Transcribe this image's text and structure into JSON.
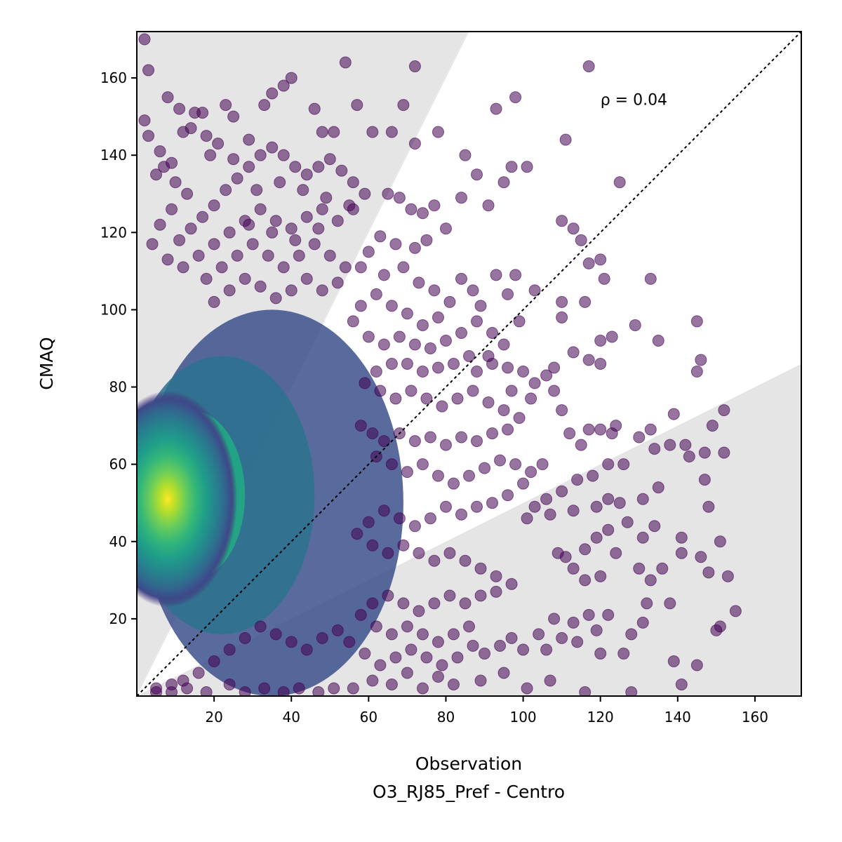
{
  "chart_data": {
    "type": "scatter",
    "title": "",
    "xlabel": "Observation",
    "xlabel_sub": "O3_RJ85_Pref - Centro",
    "ylabel": "CMAQ",
    "xlim": [
      0,
      172
    ],
    "ylim": [
      0,
      172
    ],
    "xticks": [
      20,
      40,
      60,
      80,
      100,
      120,
      140,
      160
    ],
    "yticks": [
      20,
      40,
      60,
      80,
      100,
      120,
      140,
      160
    ],
    "annotation": {
      "text": "ρ = 0.04",
      "x": 120,
      "y": 153
    },
    "reference_line": {
      "type": "1:1",
      "style": "dotted",
      "color": "#000000"
    },
    "shaded_regions": [
      {
        "name": "factor-2-upper",
        "boundary": "y = 2x",
        "color": "#e5e5e5"
      },
      {
        "name": "factor-2-lower",
        "boundary": "y = x/2",
        "color": "#e5e5e5"
      }
    ],
    "colormap": "viridis",
    "density_peak": {
      "x": 8,
      "y": 51
    },
    "points": [
      [
        2,
        170
      ],
      [
        3,
        162
      ],
      [
        2,
        149
      ],
      [
        8,
        155
      ],
      [
        11,
        152
      ],
      [
        15,
        151
      ],
      [
        17,
        151
      ],
      [
        14,
        147
      ],
      [
        12,
        146
      ],
      [
        18,
        145
      ],
      [
        23,
        153
      ],
      [
        25,
        150
      ],
      [
        29,
        144
      ],
      [
        33,
        153
      ],
      [
        35,
        156
      ],
      [
        38,
        158
      ],
      [
        40,
        160
      ],
      [
        46,
        152
      ],
      [
        48,
        146
      ],
      [
        51,
        146
      ],
      [
        54,
        164
      ],
      [
        57,
        153
      ],
      [
        61,
        146
      ],
      [
        66,
        146
      ],
      [
        69,
        153
      ],
      [
        72,
        163
      ],
      [
        72,
        143
      ],
      [
        78,
        146
      ],
      [
        93,
        152
      ],
      [
        98,
        155
      ],
      [
        111,
        144
      ],
      [
        117,
        163
      ],
      [
        85,
        140
      ],
      [
        88,
        135
      ],
      [
        97,
        137
      ],
      [
        101,
        137
      ],
      [
        95,
        133
      ],
      [
        84,
        129
      ],
      [
        91,
        127
      ],
      [
        125,
        133
      ],
      [
        110,
        123
      ],
      [
        113,
        121
      ],
      [
        115,
        118
      ],
      [
        120,
        113
      ],
      [
        117,
        112
      ],
      [
        121,
        108
      ],
      [
        133,
        108
      ],
      [
        110,
        102
      ],
      [
        116,
        102
      ],
      [
        96,
        104
      ],
      [
        103,
        105
      ],
      [
        98,
        109
      ],
      [
        93,
        109
      ],
      [
        84,
        108
      ],
      [
        87,
        105
      ],
      [
        89,
        101
      ],
      [
        99,
        97
      ],
      [
        110,
        98
      ],
      [
        120,
        92
      ],
      [
        123,
        93
      ],
      [
        129,
        96
      ],
      [
        135,
        92
      ],
      [
        145,
        97
      ],
      [
        146,
        87
      ],
      [
        145,
        84
      ],
      [
        113,
        89
      ],
      [
        117,
        87
      ],
      [
        120,
        86
      ],
      [
        108,
        85
      ],
      [
        106,
        83
      ],
      [
        100,
        84
      ],
      [
        96,
        85
      ],
      [
        103,
        81
      ],
      [
        92,
        86
      ],
      [
        88,
        84
      ],
      [
        97,
        79
      ],
      [
        102,
        77
      ],
      [
        108,
        79
      ],
      [
        110,
        74
      ],
      [
        112,
        68
      ],
      [
        115,
        65
      ],
      [
        117,
        69
      ],
      [
        120,
        69
      ],
      [
        123,
        68
      ],
      [
        124,
        70
      ],
      [
        133,
        69
      ],
      [
        134,
        64
      ],
      [
        138,
        65
      ],
      [
        142,
        65
      ],
      [
        143,
        62
      ],
      [
        147,
        63
      ],
      [
        152,
        63
      ],
      [
        152,
        74
      ],
      [
        149,
        70
      ],
      [
        139,
        73
      ],
      [
        130,
        67
      ],
      [
        126,
        60
      ],
      [
        122,
        60
      ],
      [
        118,
        57
      ],
      [
        114,
        56
      ],
      [
        110,
        53
      ],
      [
        106,
        51
      ],
      [
        103,
        49
      ],
      [
        101,
        46
      ],
      [
        107,
        47
      ],
      [
        113,
        48
      ],
      [
        119,
        49
      ],
      [
        122,
        51
      ],
      [
        125,
        50
      ],
      [
        131,
        51
      ],
      [
        135,
        54
      ],
      [
        134,
        44
      ],
      [
        131,
        41
      ],
      [
        127,
        45
      ],
      [
        122,
        43
      ],
      [
        119,
        41
      ],
      [
        116,
        38
      ],
      [
        111,
        36
      ],
      [
        109,
        37
      ],
      [
        113,
        33
      ],
      [
        116,
        30
      ],
      [
        120,
        31
      ],
      [
        124,
        37
      ],
      [
        130,
        33
      ],
      [
        133,
        30
      ],
      [
        136,
        33
      ],
      [
        141,
        37
      ],
      [
        141,
        41
      ],
      [
        146,
        36
      ],
      [
        148,
        32
      ],
      [
        147,
        56
      ],
      [
        148,
        49
      ],
      [
        151,
        40
      ],
      [
        153,
        31
      ],
      [
        155,
        22
      ],
      [
        151,
        18
      ],
      [
        150,
        17
      ],
      [
        138,
        24
      ],
      [
        132,
        24
      ],
      [
        131,
        19
      ],
      [
        128,
        16
      ],
      [
        126,
        11
      ],
      [
        120,
        11
      ],
      [
        114,
        14
      ],
      [
        110,
        15
      ],
      [
        106,
        12
      ],
      [
        100,
        12
      ],
      [
        97,
        15
      ],
      [
        94,
        13
      ],
      [
        90,
        11
      ],
      [
        87,
        13
      ],
      [
        104,
        16
      ],
      [
        108,
        20
      ],
      [
        113,
        19
      ],
      [
        117,
        21
      ],
      [
        122,
        21
      ],
      [
        119,
        17
      ],
      [
        139,
        9
      ],
      [
        145,
        8
      ],
      [
        141,
        3
      ],
      [
        128,
        1
      ],
      [
        116,
        1
      ],
      [
        107,
        4
      ],
      [
        101,
        2
      ],
      [
        95,
        6
      ],
      [
        89,
        4
      ],
      [
        82,
        3
      ],
      [
        78,
        5
      ],
      [
        74,
        2
      ],
      [
        70,
        6
      ],
      [
        66,
        3
      ],
      [
        61,
        4
      ],
      [
        56,
        2
      ],
      [
        51,
        2
      ],
      [
        47,
        1
      ],
      [
        42,
        2
      ],
      [
        38,
        1
      ],
      [
        33,
        2
      ],
      [
        28,
        1
      ],
      [
        24,
        3
      ],
      [
        18,
        1
      ],
      [
        13,
        2
      ],
      [
        9,
        1
      ],
      [
        5,
        1
      ],
      [
        65,
        130
      ],
      [
        68,
        129
      ],
      [
        71,
        126
      ],
      [
        74,
        125
      ],
      [
        77,
        127
      ],
      [
        80,
        121
      ],
      [
        75,
        118
      ],
      [
        72,
        116
      ],
      [
        67,
        117
      ],
      [
        63,
        119
      ],
      [
        60,
        115
      ],
      [
        58,
        111
      ],
      [
        64,
        109
      ],
      [
        69,
        111
      ],
      [
        73,
        107
      ],
      [
        77,
        105
      ],
      [
        81,
        102
      ],
      [
        78,
        98
      ],
      [
        74,
        96
      ],
      [
        70,
        99
      ],
      [
        66,
        101
      ],
      [
        62,
        104
      ],
      [
        58,
        101
      ],
      [
        56,
        97
      ],
      [
        60,
        93
      ],
      [
        64,
        91
      ],
      [
        68,
        93
      ],
      [
        72,
        91
      ],
      [
        76,
        90
      ],
      [
        80,
        92
      ],
      [
        84,
        94
      ],
      [
        88,
        97
      ],
      [
        92,
        94
      ],
      [
        95,
        91
      ],
      [
        91,
        88
      ],
      [
        86,
        88
      ],
      [
        82,
        86
      ],
      [
        78,
        85
      ],
      [
        74,
        84
      ],
      [
        70,
        86
      ],
      [
        66,
        86
      ],
      [
        62,
        84
      ],
      [
        59,
        81
      ],
      [
        63,
        79
      ],
      [
        67,
        77
      ],
      [
        71,
        79
      ],
      [
        75,
        77
      ],
      [
        79,
        75
      ],
      [
        83,
        77
      ],
      [
        87,
        79
      ],
      [
        91,
        76
      ],
      [
        95,
        74
      ],
      [
        99,
        72
      ],
      [
        96,
        69
      ],
      [
        92,
        68
      ],
      [
        88,
        66
      ],
      [
        84,
        67
      ],
      [
        80,
        65
      ],
      [
        76,
        67
      ],
      [
        72,
        66
      ],
      [
        68,
        68
      ],
      [
        64,
        66
      ],
      [
        61,
        68
      ],
      [
        58,
        70
      ],
      [
        62,
        62
      ],
      [
        66,
        60
      ],
      [
        70,
        58
      ],
      [
        74,
        60
      ],
      [
        78,
        57
      ],
      [
        82,
        55
      ],
      [
        86,
        57
      ],
      [
        90,
        59
      ],
      [
        94,
        61
      ],
      [
        98,
        60
      ],
      [
        102,
        58
      ],
      [
        105,
        60
      ],
      [
        100,
        55
      ],
      [
        96,
        52
      ],
      [
        92,
        50
      ],
      [
        88,
        49
      ],
      [
        84,
        47
      ],
      [
        80,
        49
      ],
      [
        76,
        46
      ],
      [
        72,
        44
      ],
      [
        68,
        46
      ],
      [
        64,
        48
      ],
      [
        60,
        45
      ],
      [
        57,
        42
      ],
      [
        61,
        39
      ],
      [
        65,
        37
      ],
      [
        69,
        39
      ],
      [
        73,
        37
      ],
      [
        77,
        35
      ],
      [
        81,
        37
      ],
      [
        85,
        35
      ],
      [
        89,
        33
      ],
      [
        93,
        31
      ],
      [
        97,
        29
      ],
      [
        93,
        27
      ],
      [
        89,
        26
      ],
      [
        85,
        24
      ],
      [
        81,
        26
      ],
      [
        77,
        24
      ],
      [
        73,
        22
      ],
      [
        69,
        24
      ],
      [
        65,
        26
      ],
      [
        61,
        24
      ],
      [
        58,
        21
      ],
      [
        62,
        18
      ],
      [
        66,
        16
      ],
      [
        70,
        18
      ],
      [
        74,
        16
      ],
      [
        78,
        14
      ],
      [
        82,
        16
      ],
      [
        86,
        18
      ],
      [
        83,
        10
      ],
      [
        79,
        8
      ],
      [
        75,
        10
      ],
      [
        71,
        12
      ],
      [
        67,
        10
      ],
      [
        63,
        8
      ],
      [
        59,
        11
      ],
      [
        55,
        14
      ],
      [
        52,
        17
      ],
      [
        48,
        15
      ],
      [
        44,
        12
      ],
      [
        40,
        14
      ],
      [
        36,
        16
      ],
      [
        32,
        18
      ],
      [
        28,
        15
      ],
      [
        24,
        12
      ],
      [
        20,
        9
      ],
      [
        16,
        6
      ],
      [
        12,
        4
      ],
      [
        9,
        3
      ],
      [
        5,
        2
      ],
      [
        5,
        135
      ],
      [
        7,
        137
      ],
      [
        10,
        133
      ],
      [
        13,
        130
      ],
      [
        9,
        126
      ],
      [
        6,
        122
      ],
      [
        4,
        117
      ],
      [
        8,
        113
      ],
      [
        11,
        118
      ],
      [
        14,
        121
      ],
      [
        17,
        124
      ],
      [
        20,
        127
      ],
      [
        23,
        131
      ],
      [
        26,
        134
      ],
      [
        29,
        137
      ],
      [
        32,
        140
      ],
      [
        35,
        142
      ],
      [
        38,
        140
      ],
      [
        41,
        137
      ],
      [
        44,
        135
      ],
      [
        47,
        137
      ],
      [
        50,
        139
      ],
      [
        53,
        136
      ],
      [
        56,
        133
      ],
      [
        59,
        130
      ],
      [
        56,
        126
      ],
      [
        52,
        123
      ],
      [
        48,
        126
      ],
      [
        44,
        124
      ],
      [
        40,
        121
      ],
      [
        36,
        123
      ],
      [
        32,
        126
      ],
      [
        28,
        123
      ],
      [
        24,
        120
      ],
      [
        20,
        117
      ],
      [
        16,
        114
      ],
      [
        12,
        111
      ],
      [
        18,
        108
      ],
      [
        22,
        111
      ],
      [
        26,
        114
      ],
      [
        30,
        117
      ],
      [
        34,
        114
      ],
      [
        38,
        111
      ],
      [
        42,
        114
      ],
      [
        46,
        117
      ],
      [
        50,
        114
      ],
      [
        54,
        111
      ],
      [
        52,
        107
      ],
      [
        48,
        105
      ],
      [
        44,
        108
      ],
      [
        40,
        105
      ],
      [
        36,
        103
      ],
      [
        32,
        106
      ],
      [
        28,
        108
      ],
      [
        24,
        105
      ],
      [
        20,
        102
      ],
      [
        3,
        145
      ],
      [
        6,
        141
      ],
      [
        9,
        138
      ],
      [
        19,
        140
      ],
      [
        21,
        143
      ],
      [
        25,
        139
      ],
      [
        31,
        131
      ],
      [
        37,
        133
      ],
      [
        43,
        131
      ],
      [
        49,
        129
      ],
      [
        55,
        127
      ],
      [
        47,
        121
      ],
      [
        41,
        118
      ],
      [
        35,
        120
      ],
      [
        29,
        122
      ]
    ]
  }
}
